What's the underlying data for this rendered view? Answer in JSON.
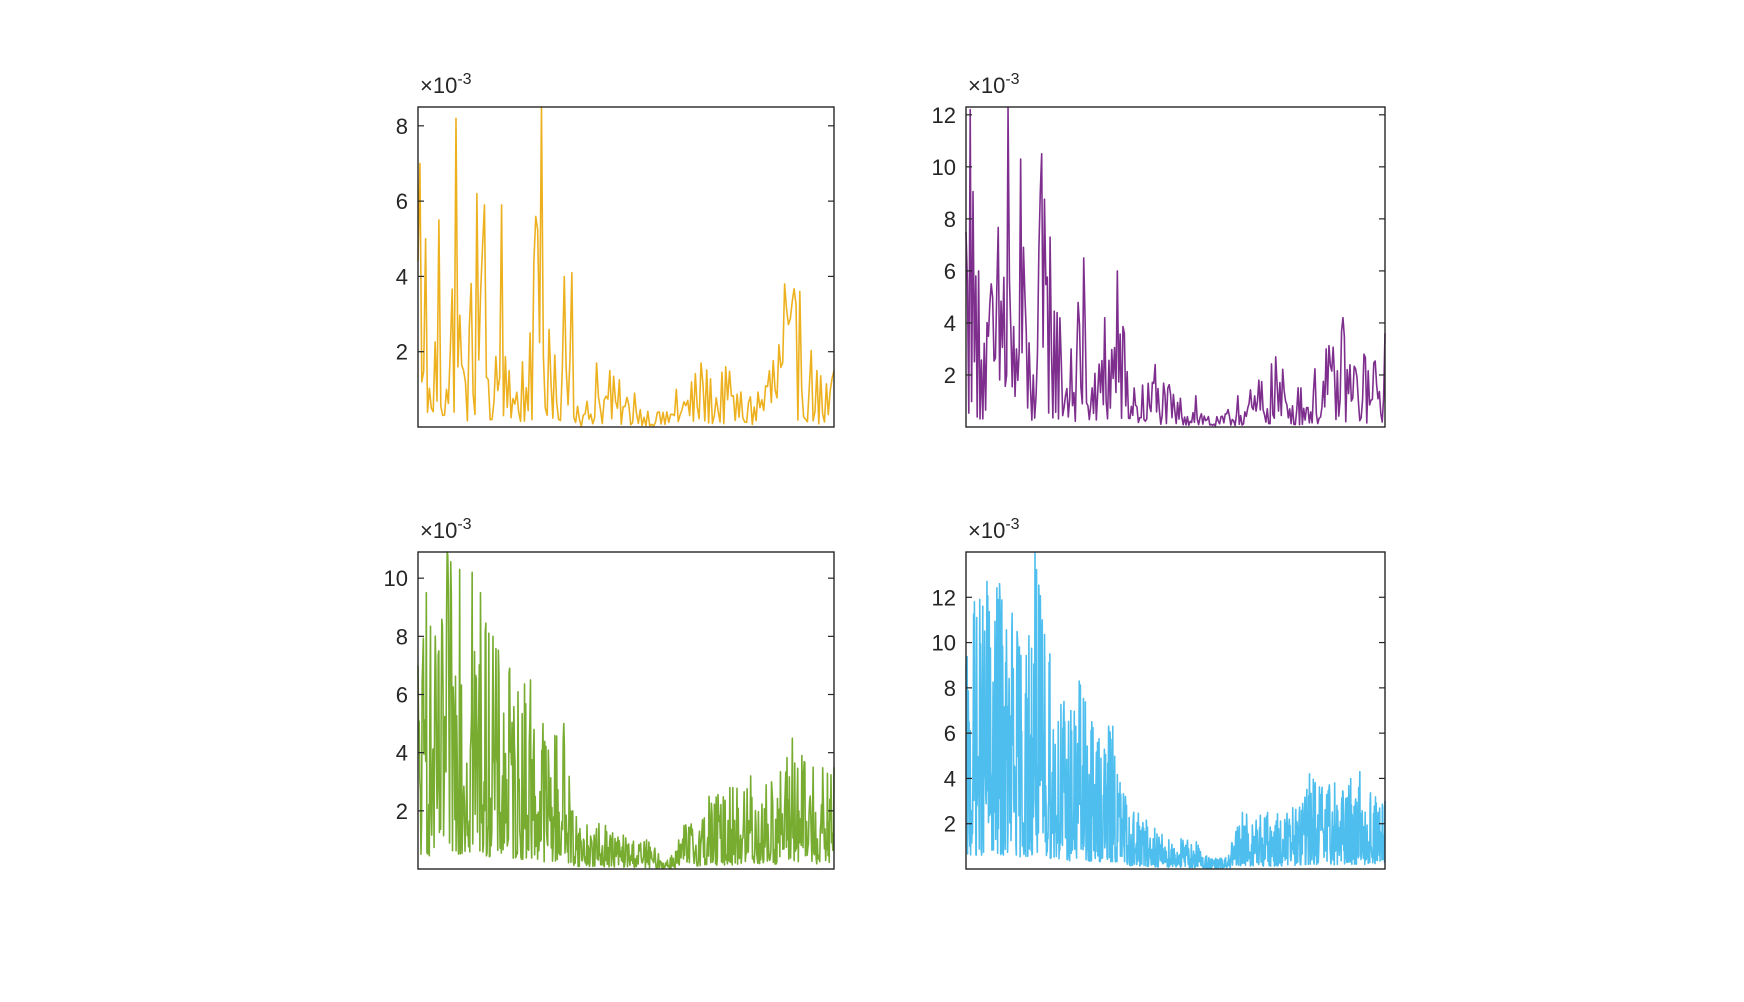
{
  "figure": {
    "panels_label": "2x2 subplot grid"
  },
  "chart_data": [
    {
      "type": "line",
      "exponent_base": "×10",
      "exponent_power": "-3",
      "ylim": [
        0,
        8.5
      ],
      "yticks": [
        2,
        4,
        6,
        8
      ],
      "ytick_labels": [
        "2",
        "4",
        "6",
        "8"
      ],
      "xticks": "none",
      "color": "#EDB120",
      "series": [
        {
          "x_count": 220,
          "shape": [
            {
              "x": 0.0,
              "y": 4.4
            },
            {
              "x": 0.005,
              "y": 7.0
            },
            {
              "x": 0.01,
              "y": 1.2
            },
            {
              "x": 0.02,
              "y": 5.0
            },
            {
              "x": 0.03,
              "y": 0.5
            },
            {
              "x": 0.05,
              "y": 5.5
            },
            {
              "x": 0.07,
              "y": 1.0
            },
            {
              "x": 0.09,
              "y": 8.2
            },
            {
              "x": 0.11,
              "y": 1.5
            },
            {
              "x": 0.14,
              "y": 6.2
            },
            {
              "x": 0.16,
              "y": 5.9
            },
            {
              "x": 0.18,
              "y": 0.2
            },
            {
              "x": 0.2,
              "y": 5.9
            },
            {
              "x": 0.22,
              "y": 1.5
            },
            {
              "x": 0.27,
              "y": 2.5
            },
            {
              "x": 0.295,
              "y": 8.5
            },
            {
              "x": 0.32,
              "y": 1.2
            },
            {
              "x": 0.35,
              "y": 4.0
            },
            {
              "x": 0.37,
              "y": 4.1
            },
            {
              "x": 0.39,
              "y": 0.2
            },
            {
              "x": 0.43,
              "y": 1.7
            },
            {
              "x": 0.46,
              "y": 1.5
            },
            {
              "x": 0.52,
              "y": 0.9
            },
            {
              "x": 0.58,
              "y": 0.4
            },
            {
              "x": 0.6,
              "y": 0.4
            },
            {
              "x": 0.62,
              "y": 1.0
            },
            {
              "x": 0.68,
              "y": 1.7
            },
            {
              "x": 0.74,
              "y": 1.6
            },
            {
              "x": 0.8,
              "y": 0.8
            },
            {
              "x": 0.88,
              "y": 3.8
            },
            {
              "x": 0.92,
              "y": 3.6
            },
            {
              "x": 0.96,
              "y": 1.5
            },
            {
              "x": 1.0,
              "y": 1.5
            }
          ]
        }
      ]
    },
    {
      "type": "line",
      "exponent_base": "×10",
      "exponent_power": "-3",
      "ylim": [
        0,
        12.3
      ],
      "yticks": [
        2,
        4,
        6,
        8,
        10,
        12
      ],
      "ytick_labels": [
        "2",
        "4",
        "6",
        "8",
        "10",
        "12"
      ],
      "xticks": "none",
      "color": "#7E2F8E",
      "series": [
        {
          "x_count": 300,
          "shape": [
            {
              "x": 0.0,
              "y": 7.5
            },
            {
              "x": 0.01,
              "y": 12.2
            },
            {
              "x": 0.03,
              "y": 6.0
            },
            {
              "x": 0.06,
              "y": 5.5
            },
            {
              "x": 0.1,
              "y": 12.3
            },
            {
              "x": 0.12,
              "y": 3.0
            },
            {
              "x": 0.13,
              "y": 10.3
            },
            {
              "x": 0.16,
              "y": 2.0
            },
            {
              "x": 0.18,
              "y": 10.5
            },
            {
              "x": 0.2,
              "y": 7.3
            },
            {
              "x": 0.25,
              "y": 3.0
            },
            {
              "x": 0.28,
              "y": 6.5
            },
            {
              "x": 0.3,
              "y": 1.5
            },
            {
              "x": 0.33,
              "y": 4.2
            },
            {
              "x": 0.36,
              "y": 6.0
            },
            {
              "x": 0.4,
              "y": 1.5
            },
            {
              "x": 0.45,
              "y": 2.4
            },
            {
              "x": 0.5,
              "y": 1.3
            },
            {
              "x": 0.55,
              "y": 1.2
            },
            {
              "x": 0.58,
              "y": 0.4
            },
            {
              "x": 0.61,
              "y": 0.4
            },
            {
              "x": 0.65,
              "y": 1.2
            },
            {
              "x": 0.7,
              "y": 1.8
            },
            {
              "x": 0.74,
              "y": 2.7
            },
            {
              "x": 0.8,
              "y": 1.5
            },
            {
              "x": 0.86,
              "y": 3.0
            },
            {
              "x": 0.9,
              "y": 4.2
            },
            {
              "x": 0.95,
              "y": 2.8
            },
            {
              "x": 1.0,
              "y": 3.6
            }
          ]
        }
      ]
    },
    {
      "type": "line",
      "exponent_base": "×10",
      "exponent_power": "-3",
      "ylim": [
        0,
        10.9
      ],
      "yticks": [
        2,
        4,
        6,
        8,
        10
      ],
      "ytick_labels": [
        "2",
        "4",
        "6",
        "8",
        "10"
      ],
      "xticks": "none",
      "color": "#77AC30",
      "series": [
        {
          "x_count": 700,
          "shape": [
            {
              "x": 0.0,
              "y": 7.0
            },
            {
              "x": 0.02,
              "y": 9.5
            },
            {
              "x": 0.05,
              "y": 7.5
            },
            {
              "x": 0.07,
              "y": 10.9
            },
            {
              "x": 0.1,
              "y": 10.3
            },
            {
              "x": 0.13,
              "y": 10.2
            },
            {
              "x": 0.15,
              "y": 9.5
            },
            {
              "x": 0.18,
              "y": 8.0
            },
            {
              "x": 0.22,
              "y": 6.9
            },
            {
              "x": 0.27,
              "y": 6.5
            },
            {
              "x": 0.3,
              "y": 5.0
            },
            {
              "x": 0.35,
              "y": 5.0
            },
            {
              "x": 0.38,
              "y": 1.8
            },
            {
              "x": 0.45,
              "y": 1.5
            },
            {
              "x": 0.5,
              "y": 1.2
            },
            {
              "x": 0.55,
              "y": 1.0
            },
            {
              "x": 0.6,
              "y": 0.3
            },
            {
              "x": 0.64,
              "y": 1.5
            },
            {
              "x": 0.7,
              "y": 2.5
            },
            {
              "x": 0.75,
              "y": 2.8
            },
            {
              "x": 0.8,
              "y": 3.2
            },
            {
              "x": 0.85,
              "y": 3.0
            },
            {
              "x": 0.9,
              "y": 4.5
            },
            {
              "x": 0.95,
              "y": 3.5
            },
            {
              "x": 1.0,
              "y": 3.5
            }
          ]
        }
      ]
    },
    {
      "type": "line",
      "exponent_base": "×10",
      "exponent_power": "-3",
      "ylim": [
        0,
        14.0
      ],
      "yticks": [
        2,
        4,
        6,
        8,
        10,
        12
      ],
      "ytick_labels": [
        "2",
        "4",
        "6",
        "8",
        "10",
        "12"
      ],
      "xticks": "none",
      "color": "#4DBEEE",
      "series": [
        {
          "x_count": 1100,
          "shape": [
            {
              "x": 0.0,
              "y": 9.0
            },
            {
              "x": 0.02,
              "y": 11.8
            },
            {
              "x": 0.05,
              "y": 12.7
            },
            {
              "x": 0.08,
              "y": 12.6
            },
            {
              "x": 0.11,
              "y": 11.3
            },
            {
              "x": 0.15,
              "y": 10.3
            },
            {
              "x": 0.165,
              "y": 14.0
            },
            {
              "x": 0.2,
              "y": 9.5
            },
            {
              "x": 0.25,
              "y": 7.0
            },
            {
              "x": 0.27,
              "y": 8.3
            },
            {
              "x": 0.3,
              "y": 6.5
            },
            {
              "x": 0.35,
              "y": 6.3
            },
            {
              "x": 0.38,
              "y": 3.2
            },
            {
              "x": 0.45,
              "y": 1.8
            },
            {
              "x": 0.5,
              "y": 1.5
            },
            {
              "x": 0.55,
              "y": 1.2
            },
            {
              "x": 0.58,
              "y": 0.5
            },
            {
              "x": 0.62,
              "y": 0.5
            },
            {
              "x": 0.66,
              "y": 2.5
            },
            {
              "x": 0.72,
              "y": 2.5
            },
            {
              "x": 0.78,
              "y": 2.7
            },
            {
              "x": 0.82,
              "y": 4.2
            },
            {
              "x": 0.88,
              "y": 3.8
            },
            {
              "x": 0.94,
              "y": 4.3
            },
            {
              "x": 1.0,
              "y": 3.0
            }
          ]
        }
      ]
    }
  ]
}
